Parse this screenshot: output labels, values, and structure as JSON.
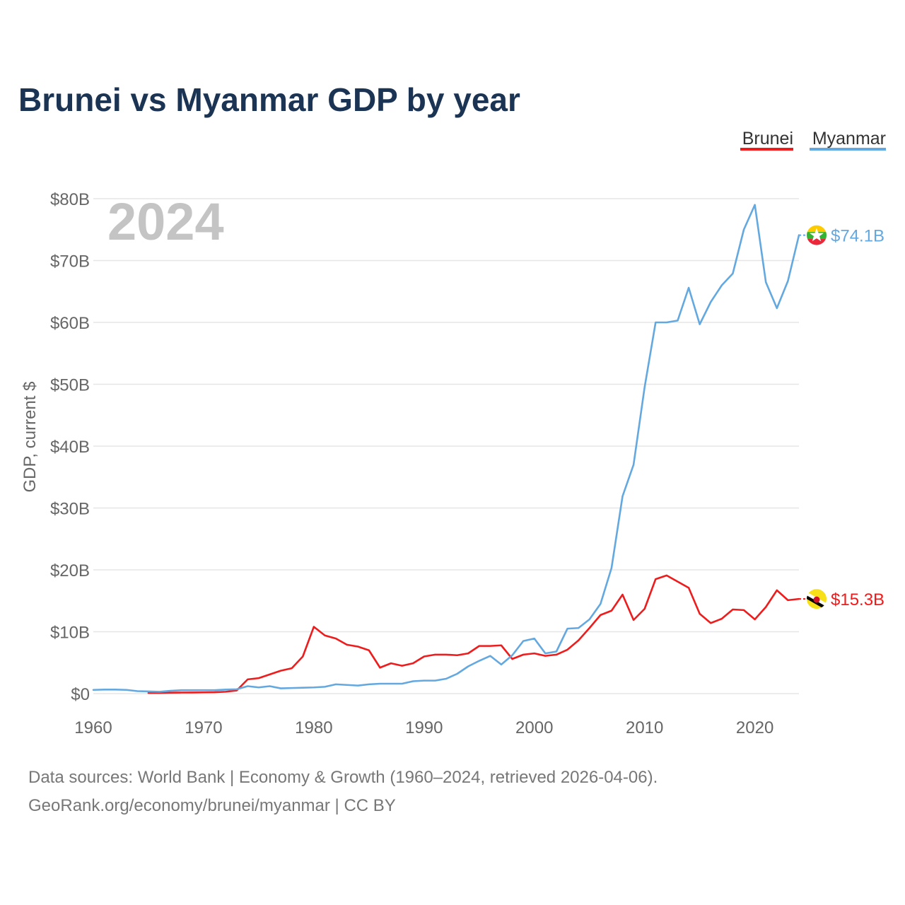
{
  "title": "Brunei vs Myanmar GDP by year",
  "year_watermark": "2024",
  "footer": {
    "line1": "Data sources: World Bank | Economy & Growth (1960–2024, retrieved 2026-04-06).",
    "line2": "GeoRank.org/economy/brunei/myanmar | CC BY"
  },
  "colors": {
    "brunei": "#ee1c1c",
    "myanmar": "#64a8e0",
    "title": "#1c3454",
    "axis_text": "#666666",
    "grid": "#e6e6e6",
    "watermark": "#c4c4c4"
  },
  "chart_data": {
    "type": "line",
    "title": "Brunei vs Myanmar GDP by year",
    "xlabel": "",
    "ylabel": "GDP, current $",
    "xlim": [
      1960,
      2024
    ],
    "ylim": [
      0,
      80
    ],
    "grid": true,
    "legend_position": "top-right",
    "x_ticks": [
      1960,
      1970,
      1980,
      1990,
      2000,
      2010,
      2020
    ],
    "x_tick_labels": [
      "1960",
      "1970",
      "1980",
      "1990",
      "2000",
      "2010",
      "2020"
    ],
    "y_ticks": [
      0,
      10,
      20,
      30,
      40,
      50,
      60,
      70,
      80
    ],
    "y_tick_labels": [
      "$0",
      "$10B",
      "$20B",
      "$30B",
      "$40B",
      "$50B",
      "$60B",
      "$70B",
      "$80B"
    ],
    "series": [
      {
        "name": "Brunei",
        "key": "brunei",
        "end_label": "$15.3B",
        "flag_icon": "brunei-flag-icon",
        "x": [
          1965,
          1966,
          1967,
          1968,
          1969,
          1970,
          1971,
          1972,
          1973,
          1974,
          1975,
          1976,
          1977,
          1978,
          1979,
          1980,
          1981,
          1982,
          1983,
          1984,
          1985,
          1986,
          1987,
          1988,
          1989,
          1990,
          1991,
          1992,
          1993,
          1994,
          1995,
          1996,
          1997,
          1998,
          1999,
          2000,
          2001,
          2002,
          2003,
          2004,
          2005,
          2006,
          2007,
          2008,
          2009,
          2010,
          2011,
          2012,
          2013,
          2014,
          2015,
          2016,
          2017,
          2018,
          2019,
          2020,
          2021,
          2022,
          2023,
          2024
        ],
        "values": [
          0.1,
          0.1,
          0.15,
          0.17,
          0.18,
          0.2,
          0.22,
          0.3,
          0.5,
          2.3,
          2.5,
          3.1,
          3.7,
          4.1,
          6.0,
          10.8,
          9.4,
          8.9,
          7.9,
          7.6,
          7.0,
          4.2,
          4.9,
          4.5,
          4.9,
          6.0,
          6.3,
          6.3,
          6.2,
          6.5,
          7.7,
          7.7,
          7.8,
          5.6,
          6.3,
          6.5,
          6.1,
          6.3,
          7.1,
          8.6,
          10.6,
          12.7,
          13.4,
          16.0,
          11.9,
          13.7,
          18.5,
          19.1,
          18.1,
          17.1,
          12.9,
          11.4,
          12.1,
          13.6,
          13.5,
          12.0,
          14.0,
          16.7,
          15.1,
          15.3
        ]
      },
      {
        "name": "Myanmar",
        "key": "myanmar",
        "end_label": "$74.1B",
        "flag_icon": "myanmar-flag-icon",
        "x": [
          1960,
          1961,
          1962,
          1963,
          1964,
          1965,
          1966,
          1967,
          1968,
          1969,
          1970,
          1971,
          1972,
          1973,
          1974,
          1975,
          1976,
          1977,
          1978,
          1979,
          1980,
          1981,
          1982,
          1983,
          1984,
          1985,
          1986,
          1987,
          1988,
          1989,
          1990,
          1991,
          1992,
          1993,
          1994,
          1995,
          1996,
          1997,
          1998,
          1999,
          2000,
          2001,
          2002,
          2003,
          2004,
          2005,
          2006,
          2007,
          2008,
          2009,
          2010,
          2011,
          2012,
          2013,
          2014,
          2015,
          2016,
          2017,
          2018,
          2019,
          2020,
          2021,
          2022,
          2023,
          2024
        ],
        "values": [
          0.6,
          0.65,
          0.65,
          0.6,
          0.4,
          0.35,
          0.3,
          0.45,
          0.55,
          0.55,
          0.55,
          0.55,
          0.65,
          0.7,
          1.2,
          1.0,
          1.2,
          0.85,
          0.9,
          0.95,
          1.0,
          1.1,
          1.5,
          1.4,
          1.3,
          1.5,
          1.6,
          1.6,
          1.6,
          2.0,
          2.1,
          2.1,
          2.4,
          3.2,
          4.4,
          5.3,
          6.1,
          4.7,
          6.2,
          8.5,
          8.9,
          6.5,
          6.8,
          10.5,
          10.6,
          12.0,
          14.5,
          20.3,
          31.9,
          37.0,
          49.5,
          60.0,
          60.0,
          60.3,
          65.6,
          59.7,
          63.3,
          66.0,
          67.9,
          75.0,
          79.0,
          66.5,
          62.3,
          66.7,
          74.1
        ]
      }
    ]
  }
}
